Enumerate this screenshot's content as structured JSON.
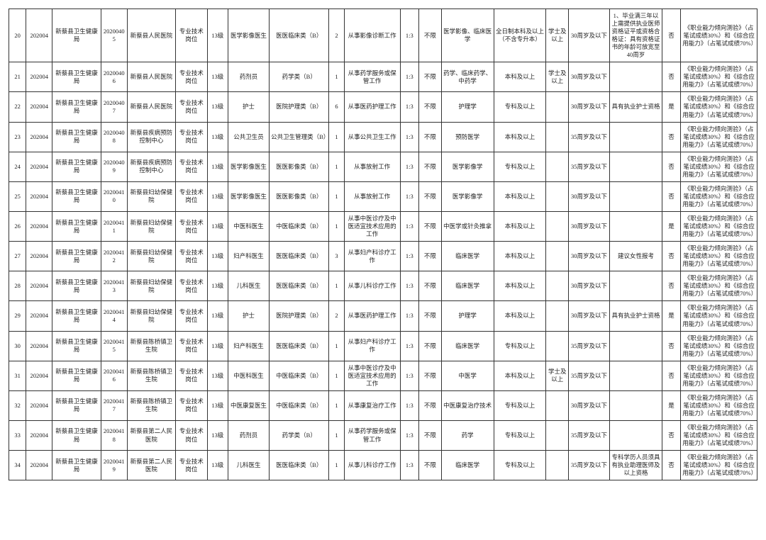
{
  "rows": [
    {
      "c": [
        "20",
        "202004",
        "新蔡县卫生健康局",
        "20200405",
        "新蔡县人民医院",
        "专业技术岗位",
        "13级",
        "医学影像医生",
        "医医临床类（B）",
        "2",
        "从事影像诊断工作",
        "1:3",
        "不限",
        "医学影像、临床医学",
        "全日制本科及以上（不含专升本）",
        "学士及以上",
        "30周岁及以下",
        "1、毕业满三年以上需提供执业医师资格证平或资格合格证：具有资格证书的年龄可放宽至40周岁",
        "否",
        "《职业能力倾向测验》（占笔试成绩30%）和《综合应用能力》（占笔试成绩70%）"
      ]
    },
    {
      "c": [
        "21",
        "202004",
        "新蔡县卫生健康局",
        "20200406",
        "新蔡县人民医院",
        "专业技术岗位",
        "13级",
        "药剂员",
        "药学类（B）",
        "1",
        "从事药学服务或保管工作",
        "1:3",
        "不限",
        "药学、临床药学、中药学",
        "本科及以上",
        "学士及以上",
        "30周岁及以下",
        "",
        "否",
        "《职业能力倾向测验》（占笔试成绩30%）和《综合应用能力》（占笔试成绩70%）"
      ]
    },
    {
      "c": [
        "22",
        "202004",
        "新蔡县卫生健康局",
        "20200407",
        "新蔡县人民医院",
        "专业技术岗位",
        "13级",
        "护士",
        "医院护理类（B）",
        "6",
        "从事医药护理工作",
        "1:3",
        "不限",
        "护理学",
        "专科及以上",
        "",
        "30周岁及以下",
        "具有执业护士资格",
        "是",
        "《职业能力倾向测验》（占笔试成绩30%）和《综合应用能力》（占笔试成绩70%）"
      ]
    },
    {
      "c": [
        "23",
        "202004",
        "新蔡县卫生健康局",
        "20200408",
        "新蔡县疾病预防控制中心",
        "专业技术岗位",
        "13级",
        "公共卫生员",
        "公共卫生管理类（B）",
        "1",
        "从事公共卫生工作",
        "1:3",
        "不限",
        "预防医学",
        "本科及以上",
        "",
        "35周岁及以下",
        "",
        "否",
        "《职业能力倾向测验》（占笔试成绩30%）和《综合应用能力》（占笔试成绩70%）"
      ]
    },
    {
      "c": [
        "24",
        "202004",
        "新蔡县卫生健康局",
        "20200409",
        "新蔡县疾病预防控制中心",
        "专业技术岗位",
        "13级",
        "医学影像医生",
        "医医影像类（B）",
        "1",
        "从事放射工作",
        "1:3",
        "不限",
        "医学影像学",
        "专科及以上",
        "",
        "35周岁及以下",
        "",
        "否",
        "《职业能力倾向测验》（占笔试成绩30%）和《综合应用能力》（占笔试成绩70%）"
      ]
    },
    {
      "c": [
        "25",
        "202004",
        "新蔡县卫生健康局",
        "20200410",
        "新蔡县妇幼保健院",
        "专业技术岗位",
        "13级",
        "医学影像医生",
        "医医影像类（B）",
        "1",
        "从事放射工作",
        "1:3",
        "不限",
        "医学影像学",
        "本科及以上",
        "",
        "30周岁及以下",
        "",
        "否",
        "《职业能力倾向测验》（占笔试成绩30%）和《综合应用能力》（占笔试成绩70%）"
      ]
    },
    {
      "c": [
        "26",
        "202004",
        "新蔡县卫生健康局",
        "20200411",
        "新蔡县妇幼保健院",
        "专业技术岗位",
        "13级",
        "中医科医生",
        "中医临床类（B）",
        "1",
        "从事中医诊疗及中医适宜技术应用的工作",
        "1:3",
        "不限",
        "中医学或针灸推拿",
        "本科及以上",
        "",
        "30周岁及以下",
        "",
        "是",
        "《职业能力倾向测验》（占笔试成绩30%）和《综合应用能力》（占笔试成绩70%）"
      ]
    },
    {
      "c": [
        "27",
        "202004",
        "新蔡县卫生健康局",
        "20200412",
        "新蔡县妇幼保健院",
        "专业技术岗位",
        "13级",
        "妇产科医生",
        "医医临床类（B）",
        "3",
        "从事妇产科诊疗工作",
        "1:3",
        "不限",
        "临床医学",
        "本科及以上",
        "",
        "30周岁及以下",
        "建议女性报考",
        "否",
        "《职业能力倾向测验》（占笔试成绩30%）和《综合应用能力》（占笔试成绩70%）"
      ]
    },
    {
      "c": [
        "28",
        "202004",
        "新蔡县卫生健康局",
        "20200413",
        "新蔡县妇幼保健院",
        "专业技术岗位",
        "13级",
        "儿科医生",
        "医医临床类（B）",
        "1",
        "从事儿科诊疗工作",
        "1:3",
        "不限",
        "临床医学",
        "本科及以上",
        "",
        "30周岁及以下",
        "",
        "否",
        "《职业能力倾向测验》（占笔试成绩30%）和《综合应用能力》（占笔试成绩70%）"
      ]
    },
    {
      "c": [
        "29",
        "202004",
        "新蔡县卫生健康局",
        "20200414",
        "新蔡县妇幼保健院",
        "专业技术岗位",
        "13级",
        "护士",
        "医院护理类（B）",
        "2",
        "从事医药护理工作",
        "1:3",
        "不限",
        "护理学",
        "本科及以上",
        "",
        "30周岁及以下",
        "具有执业护士资格",
        "是",
        "《职业能力倾向测验》（占笔试成绩30%）和《综合应用能力》（占笔试成绩70%）"
      ]
    },
    {
      "c": [
        "30",
        "202004",
        "新蔡县卫生健康局",
        "20200415",
        "新蔡县陈桥镇卫生院",
        "专业技术岗位",
        "13级",
        "妇产科医生",
        "医医临床类（B）",
        "1",
        "从事妇产科诊疗工作",
        "1:3",
        "不限",
        "临床医学",
        "专科及以上",
        "",
        "35周岁及以下",
        "",
        "否",
        "《职业能力倾向测验》（占笔试成绩30%）和《综合应用能力》（占笔试成绩70%）"
      ]
    },
    {
      "c": [
        "31",
        "202004",
        "新蔡县卫生健康局",
        "20200416",
        "新蔡县陈桥镇卫生院",
        "专业技术岗位",
        "13级",
        "中医科医生",
        "中医临床类（B）",
        "1",
        "从事中医诊疗及中医适宜技术应用的工作",
        "1:3",
        "不限",
        "中医学",
        "本科及以上",
        "学士及以上",
        "35周岁及以下",
        "",
        "否",
        "《职业能力倾向测验》（占笔试成绩30%）和《综合应用能力》（占笔试成绩70%）"
      ]
    },
    {
      "c": [
        "32",
        "202004",
        "新蔡县卫生健康局",
        "20200417",
        "新蔡县陈桥镇卫生院",
        "专业技术岗位",
        "13级",
        "中医康复医生",
        "中医临床类（B）",
        "1",
        "从事康复治疗工作",
        "1:3",
        "不限",
        "中医康复治疗技术",
        "专科及以上",
        "",
        "30周岁及以下",
        "",
        "是",
        "《职业能力倾向测验》（占笔试成绩30%）和《综合应用能力》（占笔试成绩70%）"
      ]
    },
    {
      "c": [
        "33",
        "202004",
        "新蔡县卫生健康局",
        "20200418",
        "新蔡县第二人民医院",
        "专业技术岗位",
        "13级",
        "药剂员",
        "药学类（B）",
        "1",
        "从事药学服务或保管工作",
        "1:3",
        "不限",
        "药学",
        "专科及以上",
        "",
        "35周岁及以下",
        "",
        "否",
        "《职业能力倾向测验》（占笔试成绩30%）和《综合应用能力》（占笔试成绩70%）"
      ]
    },
    {
      "c": [
        "34",
        "202004",
        "新蔡县卫生健康局",
        "20200419",
        "新蔡县第二人民医院",
        "专业技术岗位",
        "13级",
        "儿科医生",
        "医医临床类（B）",
        "1",
        "从事儿科诊疗工作",
        "1:3",
        "不限",
        "临床医学",
        "专科及以上",
        "",
        "35周岁及以下",
        "专科学历人员须具有执业助理医师及以上资格",
        "否",
        "《职业能力倾向测验》（占笔试成绩30%）和《综合应用能力》（占笔试成绩70%）"
      ]
    }
  ]
}
